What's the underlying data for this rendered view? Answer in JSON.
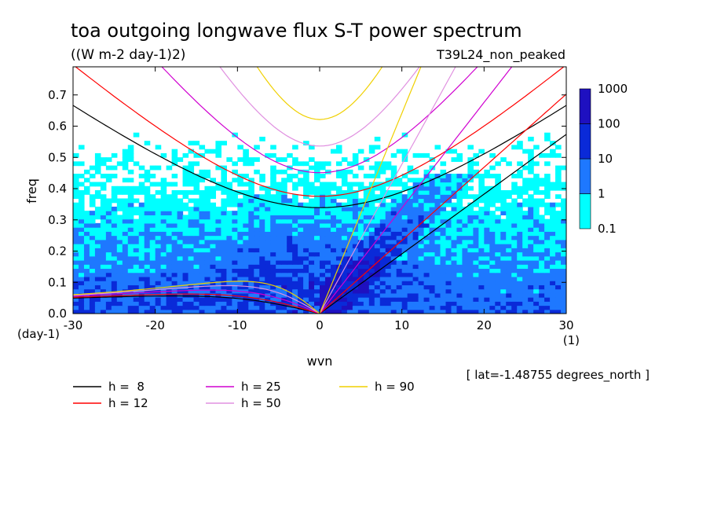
{
  "chart_data": {
    "type": "heatmap",
    "title": "toa outgoing longwave flux S-T power spectrum",
    "subtitle": "((W m-2 day-1)2)",
    "run_label": "T39L24_non_peaked",
    "xlabel": "wvn",
    "ylabel": "freq",
    "x_unit": "(1)",
    "y_unit": "(day-1)",
    "annotation": "[ lat=-1.48755 degrees_north ]",
    "xlim": [
      -30,
      30
    ],
    "ylim": [
      0,
      0.79
    ],
    "x_ticks": [
      -30,
      -20,
      -10,
      0,
      10,
      20,
      30
    ],
    "y_ticks": [
      0.0,
      0.1,
      0.2,
      0.3,
      0.4,
      0.5,
      0.6,
      0.7
    ],
    "x_tick_labels": [
      "-30",
      "-20",
      "-10",
      "0",
      "10",
      "20",
      "30"
    ],
    "y_tick_labels": [
      "0.0",
      "0.1",
      "0.2",
      "0.3",
      "0.4",
      "0.5",
      "0.6",
      "0.7"
    ],
    "colorbar": {
      "levels": [
        "0.1",
        "1",
        "10",
        "100",
        "1000"
      ],
      "colors": [
        "#00ffff",
        "#1e78ff",
        "#0a2ad8",
        "#1e10c0"
      ]
    },
    "dispersion_curves": [
      {
        "label": "h =  8",
        "h": 8,
        "color": "#000000"
      },
      {
        "label": "h = 12",
        "h": 12,
        "color": "#ff0000"
      },
      {
        "label": "h = 25",
        "h": 25,
        "color": "#d000d0"
      },
      {
        "label": "h = 50",
        "h": 50,
        "color": "#e090e0"
      },
      {
        "label": "h = 90",
        "h": 90,
        "color": "#f0d000"
      }
    ]
  }
}
